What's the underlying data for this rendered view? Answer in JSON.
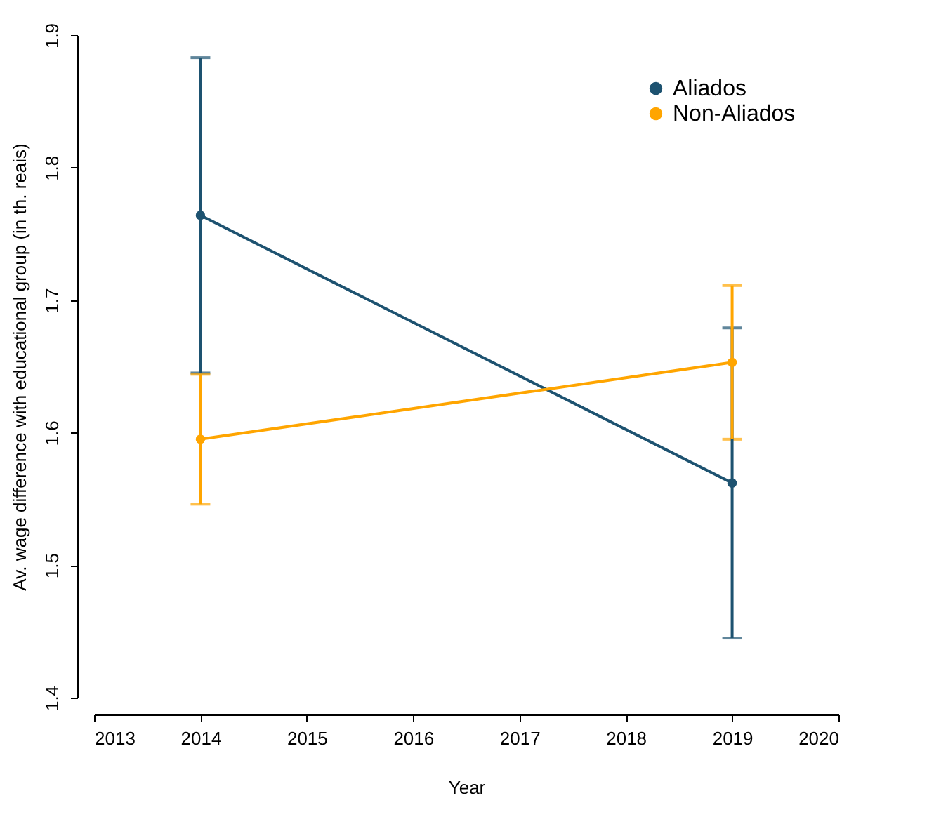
{
  "chart_data": {
    "type": "line",
    "xlabel": "Year",
    "ylabel": "Av. wage difference with educational group (in th. reais)",
    "x": [
      2014,
      2019
    ],
    "series": [
      {
        "name": "Aliados",
        "color": "#1d5270",
        "values": [
          1.764,
          1.562
        ],
        "errors": [
          0.119,
          0.117
        ]
      },
      {
        "name": "Non-Aliados",
        "color": "#ffa500",
        "values": [
          1.595,
          1.653
        ],
        "errors": [
          0.049,
          0.058
        ]
      }
    ],
    "xlim": [
      2013,
      2020
    ],
    "xticks": [
      2013,
      2014,
      2015,
      2016,
      2017,
      2018,
      2019,
      2020
    ],
    "ylim": [
      1.4,
      1.9
    ],
    "yticks": [
      1.4,
      1.5,
      1.6,
      1.7,
      1.8,
      1.9
    ],
    "grid": false,
    "legend": "top right",
    "marker": "circle",
    "line_style": "solid"
  }
}
